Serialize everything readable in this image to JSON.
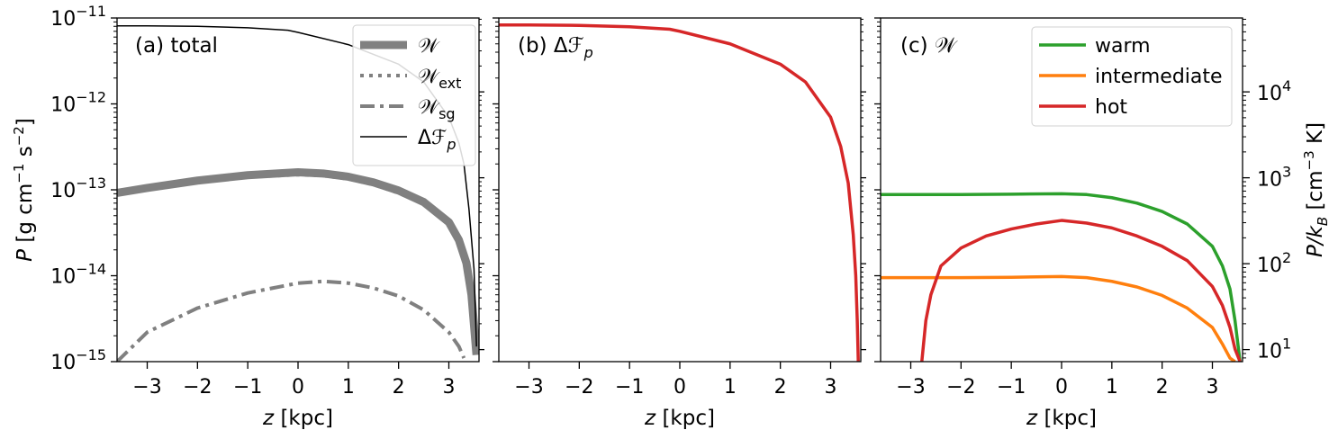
{
  "chart_data": [
    {
      "type": "line",
      "title": "(a) total",
      "xlabel": "z [kpc]",
      "ylabel": "P [g cm⁻¹ s⁻²]",
      "xlim": [
        -3.6,
        3.6
      ],
      "ylim": [
        1e-15,
        1e-11
      ],
      "yscale": "log",
      "xticks": [
        "−3",
        "−2",
        "−1",
        "0",
        "1",
        "2",
        "3"
      ],
      "yticks": [
        {
          "base": "10",
          "exp": "−15",
          "value": 1e-15
        },
        {
          "base": "10",
          "exp": "−14",
          "value": 1e-14
        },
        {
          "base": "10",
          "exp": "−13",
          "value": 1e-13
        },
        {
          "base": "10",
          "exp": "−12",
          "value": 1e-12
        },
        {
          "base": "10",
          "exp": "−11",
          "value": 1e-11
        }
      ],
      "legend": "top-right",
      "series": [
        {
          "name": "𝒲",
          "color": "#808080",
          "style": "solid-thick",
          "x": [
            -3.6,
            -3.0,
            -2.0,
            -1.0,
            0.0,
            0.5,
            1.0,
            1.5,
            2.0,
            2.5,
            3.0,
            3.2,
            3.35,
            3.45,
            3.55
          ],
          "y": [
            9.2e-14,
            1.05e-13,
            1.28e-13,
            1.48e-13,
            1.6e-13,
            1.55e-13,
            1.42e-13,
            1.22e-13,
            9.8e-14,
            7.2e-14,
            4.2e-14,
            2.6e-14,
            1.4e-14,
            6e-15,
            1.2e-15
          ]
        },
        {
          "name": "𝒲",
          "sub": "ext",
          "color": "#808080",
          "style": "dotted",
          "x": [
            -3.6,
            -3.0,
            -2.0,
            -1.0,
            0.0,
            0.5,
            1.0,
            1.5,
            2.0,
            2.5,
            3.0,
            3.2,
            3.35,
            3.45,
            3.55
          ],
          "y": [
            8.9e-14,
            1.01e-13,
            1.22e-13,
            1.41e-13,
            1.5e-13,
            1.46e-13,
            1.34e-13,
            1.15e-13,
            9.2e-14,
            6.8e-14,
            4e-14,
            2.5e-14,
            1.35e-14,
            5.8e-15,
            1.2e-15
          ]
        },
        {
          "name": "𝒲",
          "sub": "sg",
          "color": "#808080",
          "style": "dashdot",
          "x": [
            -3.6,
            -3.0,
            -2.0,
            -1.0,
            0.0,
            0.5,
            1.0,
            1.5,
            2.0,
            2.5,
            3.0,
            3.2,
            3.3
          ],
          "y": [
            1e-15,
            2.2e-15,
            4.2e-15,
            6.3e-15,
            8.2e-15,
            8.6e-15,
            8.2e-15,
            7.2e-15,
            5.8e-15,
            4e-15,
            2.2e-15,
            1.5e-15,
            1.1e-15
          ]
        },
        {
          "name": "Δℱ",
          "sub": "p",
          "color": "#000000",
          "style": "solid-thin",
          "x": [
            -3.6,
            -3.0,
            -2.0,
            -1.0,
            -0.2,
            0.0,
            1.0,
            2.0,
            2.5,
            3.0,
            3.2,
            3.3,
            3.4,
            3.5,
            3.55
          ],
          "y": [
            8.1e-12,
            8.1e-12,
            8e-12,
            7.7e-12,
            7.2e-12,
            6.8e-12,
            4.9e-12,
            2.9e-12,
            1.8e-12,
            7e-13,
            3.5e-13,
            2e-13,
            6e-14,
            1.2e-14,
            1.5e-15
          ]
        }
      ]
    },
    {
      "type": "line",
      "title": "(b) Δℱ",
      "title_sub": "p",
      "xlabel": "z [kpc]",
      "xlim": [
        -3.6,
        3.6
      ],
      "ylim": [
        1e-15,
        1e-11
      ],
      "yscale": "log",
      "xticks": [
        "−3",
        "−2",
        "−1",
        "0",
        "1",
        "2",
        "3"
      ],
      "series": [
        {
          "color": "#d62728",
          "style": "solid",
          "x": [
            -3.6,
            -3.0,
            -2.0,
            -1.0,
            -0.2,
            0.0,
            1.0,
            2.0,
            2.5,
            3.0,
            3.2,
            3.35,
            3.45,
            3.5,
            3.53,
            3.55
          ],
          "y": [
            8.3e-12,
            8.3e-12,
            8.2e-12,
            7.9e-12,
            7.4e-12,
            7e-12,
            5e-12,
            2.9e-12,
            1.8e-12,
            7e-13,
            3.2e-13,
            1.2e-13,
            3e-14,
            1e-14,
            3e-15,
            1e-15
          ]
        }
      ]
    },
    {
      "type": "line",
      "title": "(c) 𝒲",
      "xlabel": "z [kpc]",
      "ylabel": "P/k_B [cm⁻³ K]",
      "xlim": [
        -3.6,
        3.6
      ],
      "ylim": [
        1e-15,
        1e-11
      ],
      "yscale": "log",
      "right_yticks": [
        {
          "base": "10",
          "exp": "1",
          "value": 10
        },
        {
          "base": "10",
          "exp": "2",
          "value": 100
        },
        {
          "base": "10",
          "exp": "3",
          "value": 1000
        },
        {
          "base": "10",
          "exp": "4",
          "value": 10000
        }
      ],
      "xticks": [
        "−3",
        "−2",
        "−1",
        "0",
        "1",
        "2",
        "3"
      ],
      "legend": "top-right",
      "series": [
        {
          "name": "warm",
          "color": "#2ca02c",
          "style": "solid",
          "x": [
            -3.6,
            -3.0,
            -2.0,
            -1.0,
            0.0,
            0.5,
            1.0,
            1.5,
            2.0,
            2.5,
            3.0,
            3.2,
            3.35,
            3.45,
            3.55
          ],
          "y": [
            8.8e-14,
            8.8e-14,
            8.8e-14,
            8.9e-14,
            9e-14,
            8.8e-14,
            8.1e-14,
            7e-14,
            5.6e-14,
            4e-14,
            2.2e-14,
            1.3e-14,
            7e-15,
            3e-15,
            1e-15
          ]
        },
        {
          "name": "intermediate",
          "color": "#ff7f0e",
          "style": "solid",
          "x": [
            -3.6,
            -3.0,
            -2.0,
            -1.0,
            0.0,
            0.5,
            1.0,
            1.5,
            2.0,
            2.5,
            3.0,
            3.2,
            3.35,
            3.45
          ],
          "y": [
            9.5e-15,
            9.5e-15,
            9.5e-15,
            9.6e-15,
            9.8e-15,
            9.5e-15,
            8.6e-15,
            7.4e-15,
            5.9e-15,
            4.2e-15,
            2.5e-15,
            1.6e-15,
            1.1e-15,
            1e-15
          ]
        },
        {
          "name": "hot",
          "color": "#d62728",
          "style": "solid",
          "x": [
            -2.78,
            -2.7,
            -2.6,
            -2.4,
            -2.0,
            -1.5,
            -1.0,
            -0.5,
            0.0,
            0.5,
            1.0,
            1.5,
            2.0,
            2.5,
            3.0,
            3.2,
            3.35,
            3.45,
            3.55
          ],
          "y": [
            1e-15,
            3e-15,
            6e-15,
            1.3e-14,
            2.1e-14,
            2.9e-14,
            3.5e-14,
            4e-14,
            4.4e-14,
            4.1e-14,
            3.6e-14,
            2.9e-14,
            2.2e-14,
            1.5e-14,
            7.5e-15,
            4.5e-15,
            2.5e-15,
            1.4e-15,
            1e-15
          ]
        }
      ]
    }
  ]
}
